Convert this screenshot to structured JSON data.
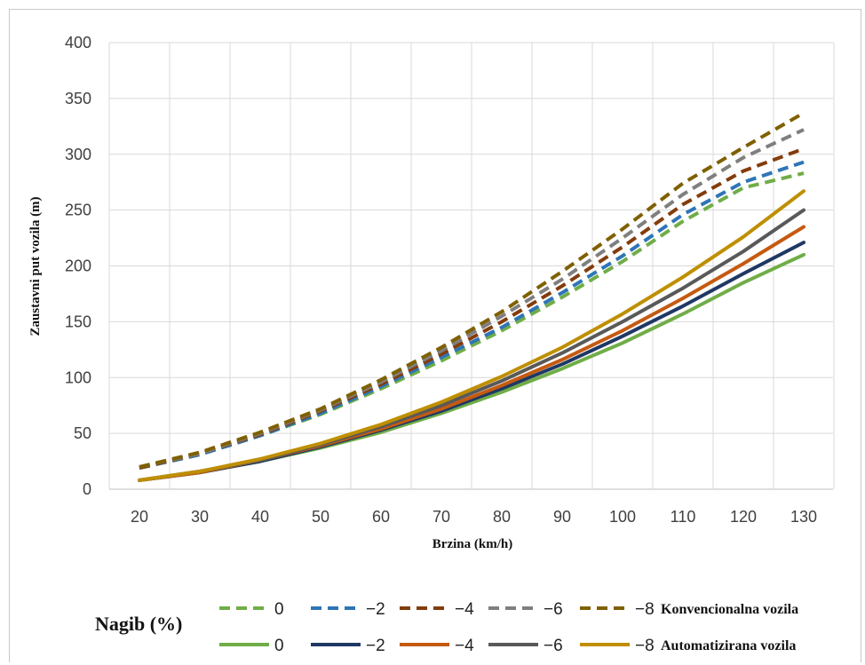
{
  "chart_data": {
    "type": "line",
    "xlabel": "Brzina (km/h)",
    "ylabel": "Zaustavni put vozila (m)",
    "xlim": [
      20,
      130
    ],
    "ylim": [
      0,
      400
    ],
    "x_ticks": [
      20,
      30,
      40,
      50,
      60,
      70,
      80,
      90,
      100,
      110,
      120,
      130
    ],
    "y_ticks": [
      0,
      50,
      100,
      150,
      200,
      250,
      300,
      350,
      400
    ],
    "grid": true,
    "x": [
      20,
      30,
      40,
      50,
      60,
      70,
      80,
      90,
      100,
      110,
      120,
      130
    ],
    "legend": {
      "title": "Nagib (%)",
      "group_labels": [
        "Konvencionalna vozila",
        "Automatizirana vozila"
      ],
      "placement": "bottom"
    },
    "series": [
      {
        "name": "0",
        "group": "Konvencionalna vozila",
        "dash": true,
        "color": "#70ad47",
        "values": [
          19,
          31,
          48,
          67,
          90,
          115,
          142,
          172,
          204,
          240,
          270,
          283
        ]
      },
      {
        "name": "−2",
        "group": "Konvencionalna vozila",
        "dash": true,
        "color": "#2e75b6",
        "values": [
          19,
          31,
          48,
          68,
          92,
          118,
          145,
          176,
          209,
          246,
          275,
          293
        ]
      },
      {
        "name": "−4",
        "group": "Konvencionalna vozila",
        "dash": true,
        "color": "#843c0c",
        "values": [
          19,
          32,
          49,
          70,
          94,
          121,
          150,
          182,
          217,
          255,
          285,
          305
        ]
      },
      {
        "name": "−6",
        "group": "Konvencionalna vozila",
        "dash": true,
        "color": "#7f7f7f",
        "values": [
          20,
          32,
          50,
          71,
          96,
          124,
          155,
          188,
          225,
          264,
          297,
          322
        ]
      },
      {
        "name": "−8",
        "group": "Konvencionalna vozila",
        "dash": true,
        "color": "#7f6000",
        "values": [
          20,
          33,
          51,
          72,
          98,
          127,
          159,
          195,
          233,
          274,
          306,
          337
        ]
      },
      {
        "name": "0",
        "group": "Automatizirana vozila",
        "dash": false,
        "color": "#70ad47",
        "values": [
          8,
          15,
          25,
          37,
          51,
          68,
          87,
          108,
          131,
          157,
          185,
          210
        ]
      },
      {
        "name": "−2",
        "group": "Automatizirana vozila",
        "dash": false,
        "color": "#1f3864",
        "values": [
          8,
          15,
          25,
          38,
          53,
          70,
          90,
          112,
          137,
          164,
          193,
          221
        ]
      },
      {
        "name": "−4",
        "group": "Automatizirana vozila",
        "dash": false,
        "color": "#c55a11",
        "values": [
          8,
          15,
          26,
          39,
          54,
          72,
          93,
          116,
          142,
          171,
          202,
          235
        ]
      },
      {
        "name": "−6",
        "group": "Automatizirana vozila",
        "dash": false,
        "color": "#595959",
        "values": [
          8,
          16,
          26,
          40,
          56,
          75,
          97,
          122,
          150,
          180,
          213,
          250
        ]
      },
      {
        "name": "−8",
        "group": "Automatizirana vozila",
        "dash": false,
        "color": "#bf8f00",
        "values": [
          8,
          16,
          27,
          41,
          58,
          78,
          101,
          127,
          157,
          190,
          226,
          267
        ]
      }
    ]
  }
}
